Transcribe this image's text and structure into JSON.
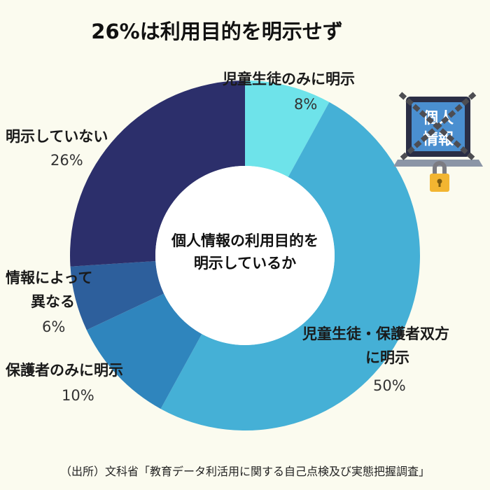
{
  "title": "26%は利用目的を明示せず",
  "chart_data": {
    "type": "pie",
    "variant": "donut",
    "center_label": [
      "個人情報の利用目的を",
      "明示しているか"
    ],
    "slices": [
      {
        "label": [
          "児童生徒のみに明示"
        ],
        "value": 8,
        "value_label": "8%",
        "color": "#6ee3ea"
      },
      {
        "label": [
          "児童生徒・保護者双方",
          "に明示"
        ],
        "value": 50,
        "value_label": "50%",
        "color": "#45b0d6"
      },
      {
        "label": [
          "保護者のみに明示"
        ],
        "value": 10,
        "value_label": "10%",
        "color": "#2f85bd"
      },
      {
        "label": [
          "情報によって",
          "異なる"
        ],
        "value": 6,
        "value_label": "6%",
        "color": "#2d5f9c"
      },
      {
        "label": [
          "明示していない"
        ],
        "value": 26,
        "value_label": "26%",
        "color": "#2c2f6b"
      }
    ]
  },
  "illustration": {
    "screen_text": [
      "個人",
      "情報"
    ],
    "icon": "locked-laptop-icon"
  },
  "source": "（出所）文科省「教育データ利活用に関する自己点検及び実態把握調査」"
}
